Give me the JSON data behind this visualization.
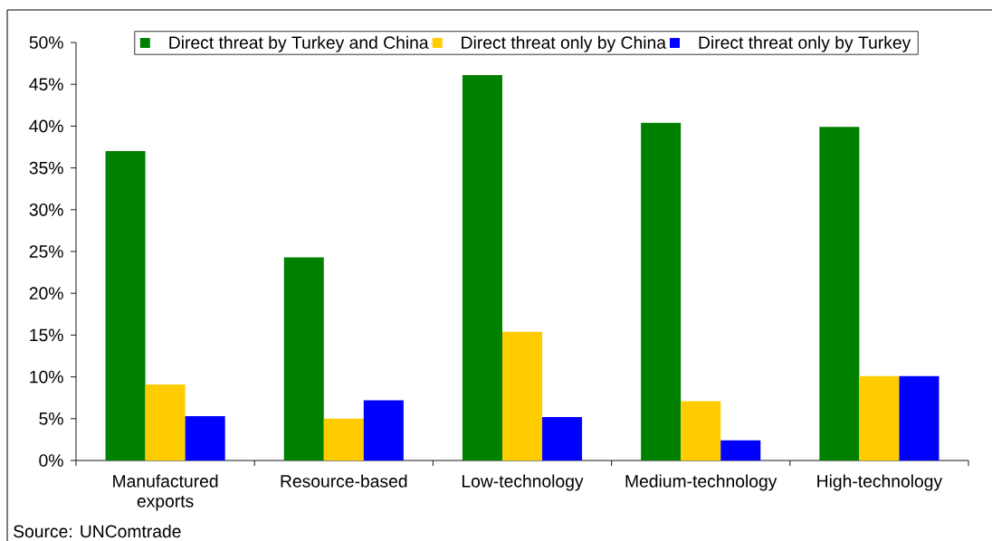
{
  "chart_data": {
    "type": "bar",
    "categories": [
      "Manufactured exports",
      "Resource-based",
      "Low-technology",
      "Medium-technology",
      "High-technology"
    ],
    "series": [
      {
        "name": "Direct threat by Turkey and China",
        "color": "#008000",
        "values": [
          37.0,
          24.3,
          46.1,
          40.4,
          39.9
        ]
      },
      {
        "name": "Direct threat only by China",
        "color": "#ffcc00",
        "values": [
          9.1,
          5.0,
          15.4,
          7.1,
          10.1
        ]
      },
      {
        "name": "Direct threat only by Turkey",
        "color": "#0000ff",
        "values": [
          5.3,
          7.2,
          5.2,
          2.4,
          10.1
        ]
      }
    ],
    "ylim": [
      0,
      50
    ],
    "yticks": [
      {
        "value": 0,
        "label": "0%"
      },
      {
        "value": 5,
        "label": "5%"
      },
      {
        "value": 10,
        "label": "10%"
      },
      {
        "value": 15,
        "label": "15%"
      },
      {
        "value": 20,
        "label": "20%"
      },
      {
        "value": 25,
        "label": "25%"
      },
      {
        "value": 30,
        "label": "30%"
      },
      {
        "value": 35,
        "label": "35%"
      },
      {
        "value": 40,
        "label": "40%"
      },
      {
        "value": 45,
        "label": "45%"
      },
      {
        "value": 50,
        "label": "50%"
      }
    ],
    "legend": "top",
    "annotations": [
      "Source: UNComtrade"
    ]
  }
}
